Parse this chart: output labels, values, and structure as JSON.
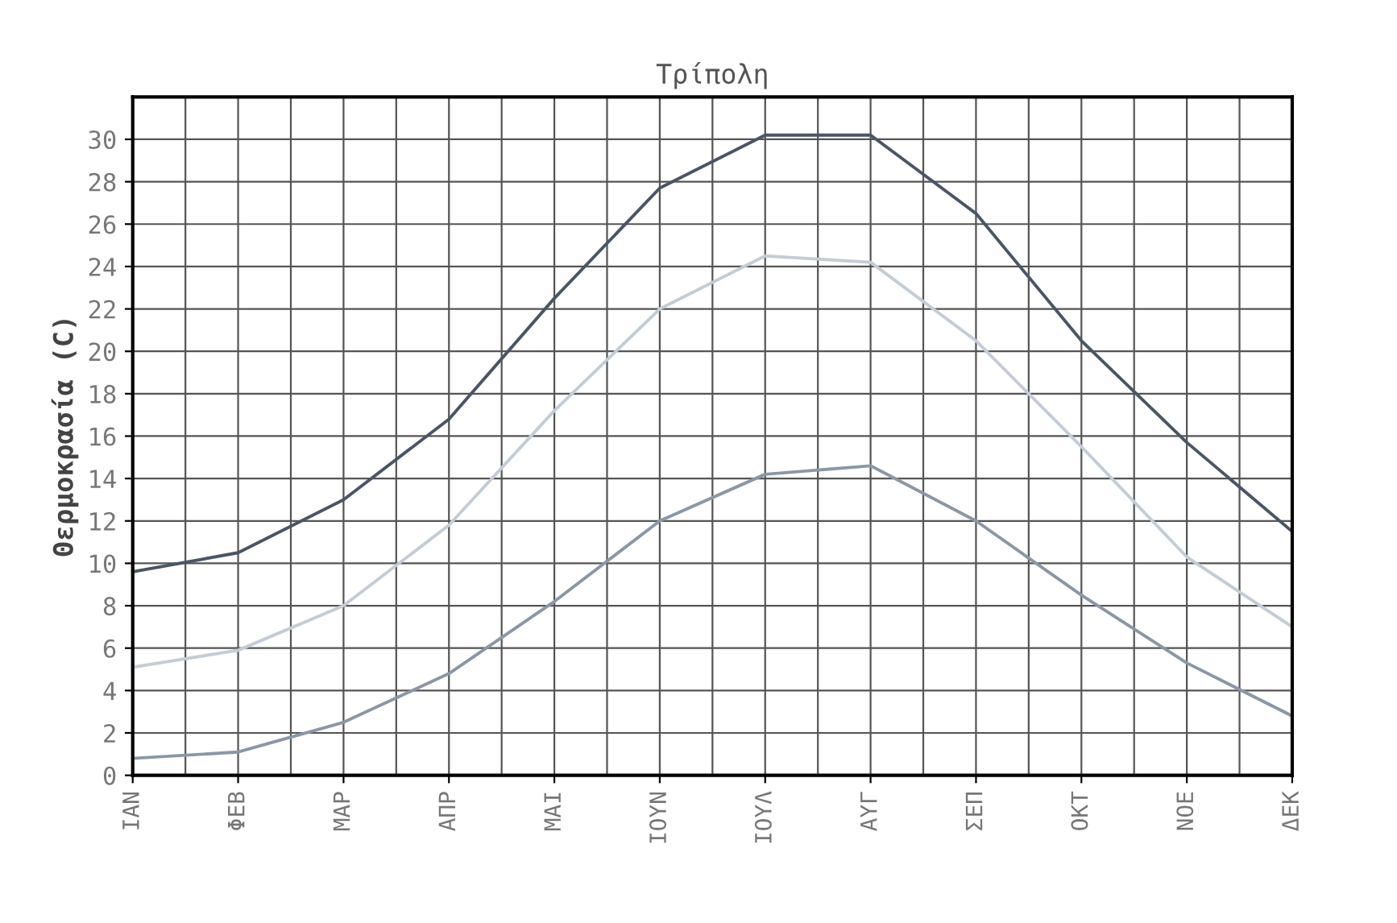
{
  "chart_data": {
    "type": "line",
    "title": "Τρίπολη",
    "ylabel": "Θερμοκρασία (C)",
    "categories": [
      "ΙΑΝ",
      "ΦΕΒ",
      "ΜΑΡ",
      "ΑΠΡ",
      "ΜΑΙ",
      "ΙΟΥΝ",
      "ΙΟΥΛ",
      "ΑΥΓ",
      "ΣΕΠ",
      "ΟΚΤ",
      "ΝΟΕ",
      "ΔΕΚ"
    ],
    "series": [
      {
        "color": "#4a5568",
        "values": [
          9.6,
          10.5,
          13.0,
          16.8,
          22.5,
          27.7,
          30.2,
          30.2,
          26.5,
          20.5,
          15.7,
          11.5
        ]
      },
      {
        "color": "#c4ccd6",
        "values": [
          5.1,
          5.9,
          8.0,
          11.8,
          17.2,
          22.0,
          24.5,
          24.2,
          20.5,
          15.5,
          10.3,
          7.0
        ]
      },
      {
        "color": "#8a97a8",
        "values": [
          0.8,
          1.1,
          2.5,
          4.8,
          8.2,
          12.0,
          14.2,
          14.6,
          12.0,
          8.5,
          5.3,
          2.8
        ]
      }
    ],
    "ylim": [
      0,
      32
    ],
    "yticks": [
      0,
      2,
      4,
      6,
      8,
      10,
      12,
      14,
      16,
      18,
      20,
      22,
      24,
      26,
      28,
      30
    ],
    "grid": true
  }
}
